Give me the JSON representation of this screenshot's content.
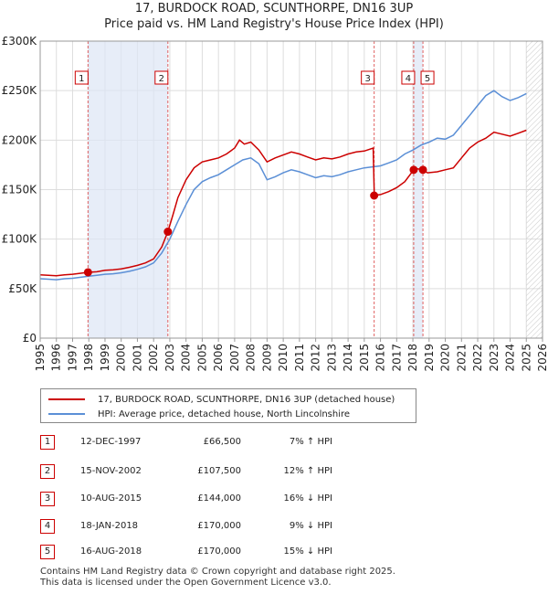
{
  "header": {
    "title_line1": "17, BURDOCK ROAD, SCUNTHORPE, DN16 3UP",
    "title_line2": "Price paid vs. HM Land Registry's House Price Index (HPI)"
  },
  "chart_data": {
    "type": "line",
    "title": "17, BURDOCK ROAD, SCUNTHORPE, DN16 3UP — Price paid vs. HM Land Registry's House Price Index (HPI)",
    "xlabel": "",
    "ylabel": "",
    "xlim": [
      1995,
      2026
    ],
    "ylim": [
      0,
      300000
    ],
    "x_ticks": [
      "1995",
      "1996",
      "1997",
      "1998",
      "1999",
      "2000",
      "2001",
      "2002",
      "2003",
      "2004",
      "2005",
      "2006",
      "2007",
      "2008",
      "2009",
      "2010",
      "2011",
      "2012",
      "2013",
      "2014",
      "2015",
      "2016",
      "2017",
      "2018",
      "2019",
      "2020",
      "2021",
      "2022",
      "2023",
      "2024",
      "2025",
      "2026"
    ],
    "y_ticks": [
      {
        "value": 0,
        "label": "£0"
      },
      {
        "value": 50000,
        "label": "£50K"
      },
      {
        "value": 100000,
        "label": "£100K"
      },
      {
        "value": 150000,
        "label": "£150K"
      },
      {
        "value": 200000,
        "label": "£200K"
      },
      {
        "value": 250000,
        "label": "£250K"
      },
      {
        "value": 300000,
        "label": "£300K"
      }
    ],
    "grid": true,
    "future_hatch_from": 2025.0,
    "series": [
      {
        "name": "17, BURDOCK ROAD, SCUNTHORPE, DN16 3UP (detached house)",
        "color": "#cc0000",
        "x": [
          1995.0,
          1995.5,
          1996.0,
          1996.5,
          1997.0,
          1997.5,
          1997.95,
          1998.5,
          1999.0,
          1999.5,
          2000.0,
          2000.5,
          2001.0,
          2001.5,
          2002.0,
          2002.5,
          2002.88,
          2003.2,
          2003.5,
          2004.0,
          2004.5,
          2005.0,
          2005.5,
          2006.0,
          2006.5,
          2007.0,
          2007.3,
          2007.6,
          2008.0,
          2008.5,
          2009.0,
          2009.5,
          2010.0,
          2010.5,
          2011.0,
          2011.5,
          2012.0,
          2012.5,
          2013.0,
          2013.5,
          2014.0,
          2014.5,
          2015.0,
          2015.55,
          2015.62,
          2016.0,
          2016.5,
          2017.0,
          2017.5,
          2018.05,
          2018.3,
          2018.62,
          2018.9,
          2019.5,
          2020.0,
          2020.5,
          2021.0,
          2021.5,
          2022.0,
          2022.5,
          2023.0,
          2023.5,
          2024.0,
          2024.5,
          2025.0
        ],
        "values": [
          64000,
          63500,
          63000,
          64000,
          64500,
          65500,
          66500,
          67000,
          68500,
          69000,
          70000,
          71500,
          73500,
          76000,
          80000,
          92000,
          107500,
          125000,
          142000,
          160000,
          172000,
          178000,
          180000,
          182000,
          186000,
          192000,
          200000,
          196000,
          198000,
          190000,
          178000,
          182000,
          185000,
          188000,
          186000,
          183000,
          180000,
          182000,
          181000,
          183000,
          186000,
          188000,
          189000,
          192000,
          144000,
          145000,
          148000,
          152000,
          158000,
          170000,
          171000,
          170000,
          167000,
          168000,
          170000,
          172000,
          182000,
          192000,
          198000,
          202000,
          208000,
          206000,
          204000,
          207000,
          210000
        ]
      },
      {
        "name": "HPI: Average price, detached house, North Lincolnshire",
        "color": "#5b8fd6",
        "x": [
          1995.0,
          1995.5,
          1996.0,
          1996.5,
          1997.0,
          1997.5,
          1998.0,
          1998.5,
          1999.0,
          1999.5,
          2000.0,
          2000.5,
          2001.0,
          2001.5,
          2002.0,
          2002.5,
          2003.0,
          2003.5,
          2004.0,
          2004.5,
          2005.0,
          2005.5,
          2006.0,
          2006.5,
          2007.0,
          2007.5,
          2008.0,
          2008.5,
          2009.0,
          2009.5,
          2010.0,
          2010.5,
          2011.0,
          2011.5,
          2012.0,
          2012.5,
          2013.0,
          2013.5,
          2014.0,
          2014.5,
          2015.0,
          2015.5,
          2016.0,
          2016.5,
          2017.0,
          2017.5,
          2018.0,
          2018.5,
          2019.0,
          2019.5,
          2020.0,
          2020.5,
          2021.0,
          2021.5,
          2022.0,
          2022.5,
          2023.0,
          2023.5,
          2024.0,
          2024.5,
          2025.0
        ],
        "values": [
          60000,
          59500,
          59000,
          60000,
          60500,
          61500,
          62500,
          63500,
          64500,
          65000,
          66000,
          67500,
          69500,
          72000,
          76000,
          86000,
          100000,
          118000,
          135000,
          150000,
          158000,
          162000,
          165000,
          170000,
          175000,
          180000,
          182000,
          176000,
          160000,
          163000,
          167000,
          170000,
          168000,
          165000,
          162000,
          164000,
          163000,
          165000,
          168000,
          170000,
          172000,
          173000,
          174000,
          177000,
          180000,
          186000,
          190000,
          195000,
          198000,
          202000,
          201000,
          205000,
          215000,
          225000,
          235000,
          245000,
          250000,
          244000,
          240000,
          243000,
          247000
        ]
      }
    ],
    "sales": [
      {
        "id": "1",
        "x": 1997.95,
        "value": 66500
      },
      {
        "id": "2",
        "x": 2002.88,
        "value": 107500
      },
      {
        "id": "3",
        "x": 2015.61,
        "value": 144000
      },
      {
        "id": "4",
        "x": 2018.05,
        "value": 170000
      },
      {
        "id": "5",
        "x": 2018.62,
        "value": 170000
      }
    ]
  },
  "legend": {
    "items": [
      {
        "label": "17, BURDOCK ROAD, SCUNTHORPE, DN16 3UP (detached house)",
        "color": "#cc0000"
      },
      {
        "label": "HPI: Average price, detached house, North Lincolnshire",
        "color": "#5b8fd6"
      }
    ]
  },
  "sales_table": [
    {
      "num": "1",
      "date": "12-DEC-1997",
      "price": "£66,500",
      "hpi": "7% ↑ HPI"
    },
    {
      "num": "2",
      "date": "15-NOV-2002",
      "price": "£107,500",
      "hpi": "12% ↑ HPI"
    },
    {
      "num": "3",
      "date": "10-AUG-2015",
      "price": "£144,000",
      "hpi": "16% ↓ HPI"
    },
    {
      "num": "4",
      "date": "18-JAN-2018",
      "price": "£170,000",
      "hpi": "9% ↓ HPI"
    },
    {
      "num": "5",
      "date": "16-AUG-2018",
      "price": "£170,000",
      "hpi": "15% ↓ HPI"
    }
  ],
  "footer": {
    "line1": "Contains HM Land Registry data © Crown copyright and database right 2025.",
    "line2": "This data is licensed under the Open Government Licence v3.0."
  }
}
